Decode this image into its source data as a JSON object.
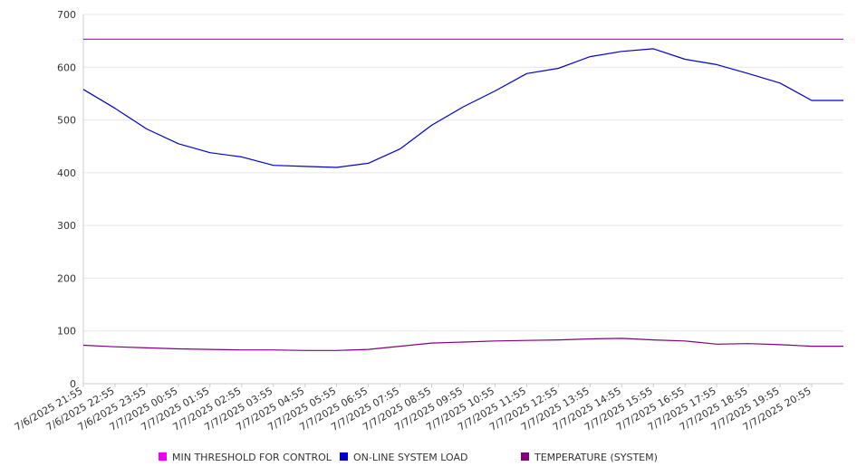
{
  "chart_data": {
    "type": "line",
    "title": "",
    "xlabel": "",
    "ylabel": "",
    "ylim": [
      0,
      700
    ],
    "yticks": [
      0,
      100,
      200,
      300,
      400,
      500,
      600,
      700
    ],
    "grid": true,
    "legend_position": "bottom",
    "categories": [
      "7/6/2025 21:55",
      "7/6/2025 22:55",
      "7/6/2025 23:55",
      "7/7/2025 00:55",
      "7/7/2025 01:55",
      "7/7/2025 02:55",
      "7/7/2025 03:55",
      "7/7/2025 04:55",
      "7/7/2025 05:55",
      "7/7/2025 06:55",
      "7/7/2025 07:55",
      "7/7/2025 08:55",
      "7/7/2025 09:55",
      "7/7/2025 10:55",
      "7/7/2025 11:55",
      "7/7/2025 12:55",
      "7/7/2025 13:55",
      "7/7/2025 14:55",
      "7/7/2025 15:55",
      "7/7/2025 16:55",
      "7/7/2025 17:55",
      "7/7/2025 18:55",
      "7/7/2025 19:55",
      "7/7/2025 20:55"
    ],
    "series": [
      {
        "name": "MIN THRESHOLD FOR CONTROL",
        "color": "#ee00ee",
        "values": [
          653,
          653,
          653,
          653,
          653,
          653,
          653,
          653,
          653,
          653,
          653,
          653,
          653,
          653,
          653,
          653,
          653,
          653,
          653,
          653,
          653,
          653,
          653,
          653
        ]
      },
      {
        "name": "ON-LINE SYSTEM LOAD",
        "color": "#0000cc",
        "values": [
          558,
          522,
          483,
          455,
          438,
          430,
          414,
          412,
          410,
          418,
          445,
          490,
          525,
          555,
          588,
          598,
          620,
          630,
          635,
          615,
          605,
          588,
          570,
          537
        ]
      },
      {
        "name": "TEMPERATURE (SYSTEM)",
        "color": "#800080",
        "values": [
          73,
          70,
          68,
          66,
          65,
          64,
          64,
          63,
          63,
          65,
          71,
          77,
          79,
          81,
          82,
          83,
          85,
          86,
          83,
          81,
          75,
          76,
          74,
          71
        ]
      }
    ],
    "legend": [
      "MIN THRESHOLD FOR CONTROL",
      "ON-LINE SYSTEM LOAD",
      "TEMPERATURE (SYSTEM)"
    ]
  }
}
